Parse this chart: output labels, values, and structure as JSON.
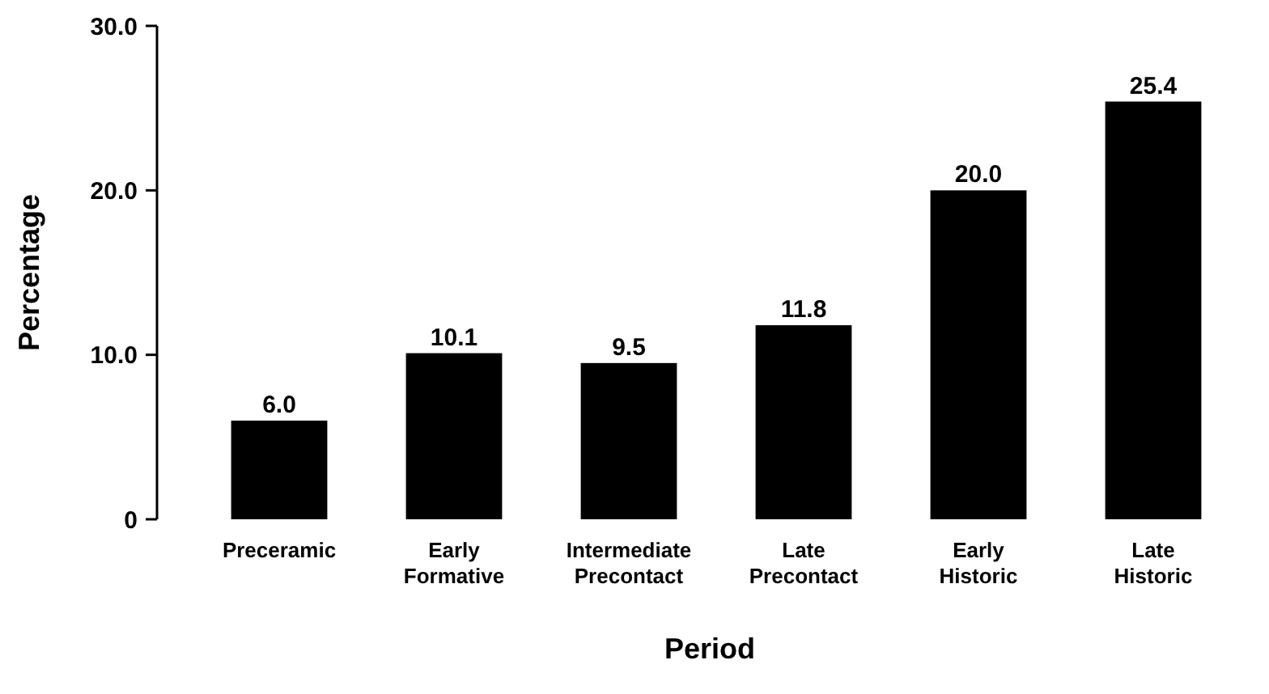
{
  "chart_data": {
    "type": "bar",
    "xlabel": "Period",
    "ylabel": "Percentage",
    "categories": [
      "Preceramic",
      "Early Formative",
      "Intermediate Precontact",
      "Late Precontact",
      "Early Historic",
      "Late Historic"
    ],
    "values": [
      6.0,
      10.1,
      9.5,
      11.8,
      20.0,
      25.4
    ],
    "value_labels": [
      "6.0",
      "10.1",
      "9.5",
      "11.8",
      "20.0",
      "25.4"
    ],
    "color": "#000000",
    "ylim": [
      0,
      30
    ],
    "yticks": [
      0,
      {
        "value": 10,
        "label": "10.0"
      },
      {
        "value": 20,
        "label": "20.0"
      },
      {
        "value": 30,
        "label": "30.0"
      }
    ],
    "grid": false
  }
}
